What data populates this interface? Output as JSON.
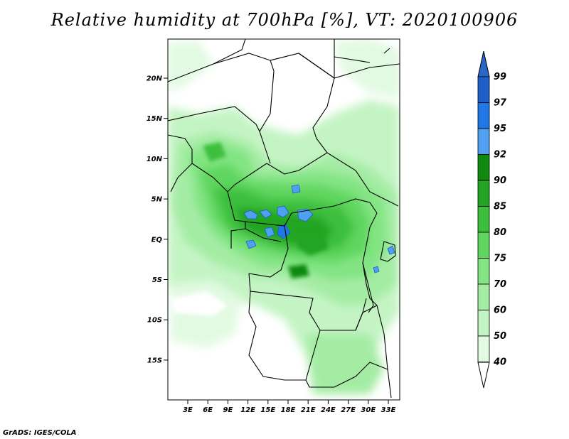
{
  "title": "Relative humidity at 700hPa [%], VT: 2020100906",
  "credit": "GrADS: IGES/COLA",
  "map": {
    "lat_labels": [
      "20N",
      "15N",
      "10N",
      "5N",
      "EQ",
      "5S",
      "10S",
      "15S"
    ],
    "lon_labels": [
      "3E",
      "6E",
      "9E",
      "12E",
      "15E",
      "18E",
      "21E",
      "24E",
      "27E",
      "30E",
      "33E"
    ]
  },
  "colorbar": {
    "labels": [
      "99",
      "97",
      "95",
      "92",
      "90",
      "85",
      "80",
      "75",
      "70",
      "60",
      "50",
      "40"
    ],
    "colors": [
      "#1f5fc8",
      "#1f78e6",
      "#4fa0f0",
      "#0f8a0f",
      "#23a523",
      "#3cbf3c",
      "#5fd65f",
      "#82e482",
      "#a4eca4",
      "#c4f4c4",
      "#e2fae2",
      "#ffffff"
    ],
    "top_arrow_color": "#2a66c8",
    "bottom_arrow_color": "#ffffff"
  }
}
